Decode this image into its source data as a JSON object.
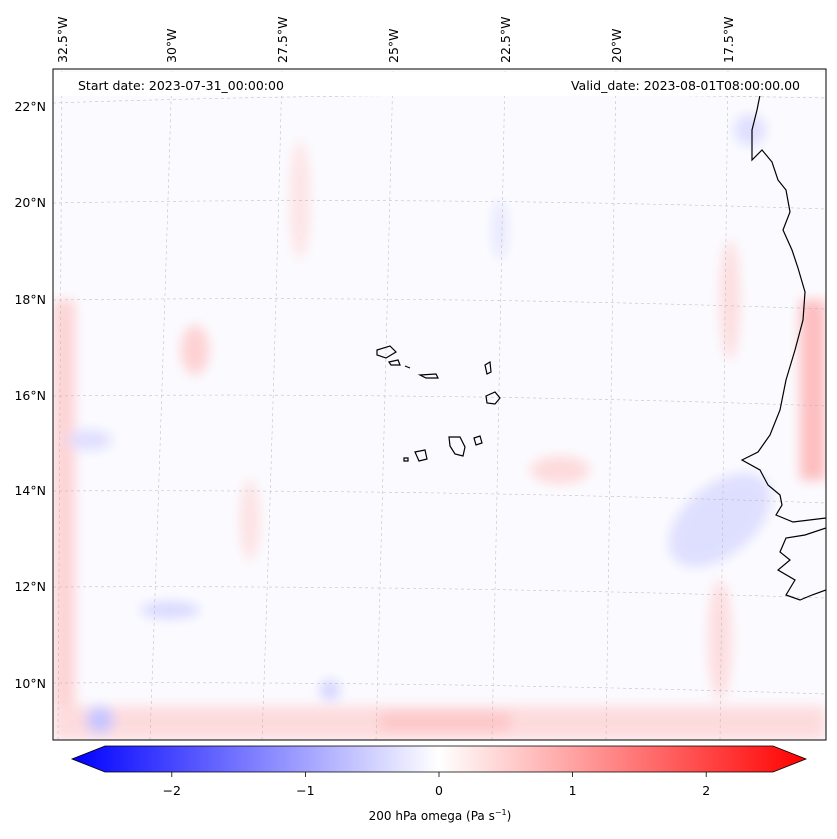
{
  "map": {
    "start_date": "Start date: 2023-07-31_00:00:00",
    "valid_date": "Valid_date: 2023-08-01T08:00:00.00",
    "lon_labels": [
      "32.5°W",
      "30°W",
      "27.5°W",
      "25°W",
      "22.5°W",
      "20°W",
      "17.5°W"
    ],
    "lat_labels": [
      "22°N",
      "20°N",
      "18°N",
      "16°N",
      "14°N",
      "12°N",
      "10°N"
    ],
    "field": "200 hPa omega",
    "region": "Cabo Verde / West African coast"
  },
  "colorbar": {
    "label_prefix": "200 hPa omega (Pa s",
    "label_exp": "−1",
    "label_suffix": ")",
    "ticks": [
      "−2",
      "−1",
      "0",
      "1",
      "2"
    ],
    "tick_values": [
      -2,
      -1,
      0,
      1,
      2
    ],
    "vmin": -2.6,
    "vmax": 2.6,
    "colors": {
      "neg": "#0000ff",
      "mid": "#ffffff",
      "pos": "#ff0000"
    }
  }
}
